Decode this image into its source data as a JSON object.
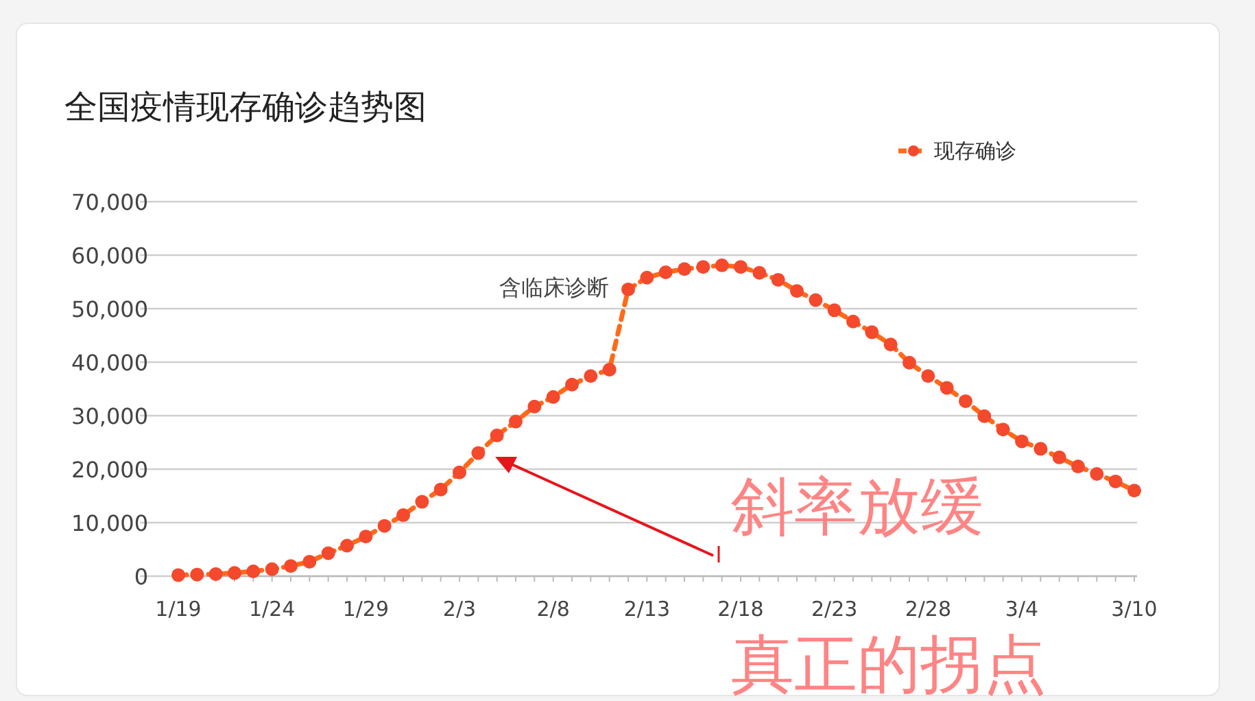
{
  "chart_data": {
    "type": "line",
    "title": "全国疫情现存确诊趋势图",
    "categories": [
      "1/19",
      null,
      null,
      null,
      null,
      "1/24",
      null,
      null,
      null,
      null,
      "1/29",
      null,
      null,
      null,
      null,
      "2/3",
      null,
      null,
      null,
      null,
      "2/8",
      null,
      null,
      null,
      null,
      "2/13",
      null,
      null,
      null,
      null,
      "2/18",
      null,
      null,
      null,
      null,
      "2/23",
      null,
      null,
      null,
      null,
      "2/28",
      null,
      null,
      null,
      null,
      "3/4",
      null,
      null,
      null,
      null,
      null,
      "3/10"
    ],
    "series": [
      {
        "name": "现存确诊",
        "color": "#ff6a1a",
        "values": [
          200,
          300,
          400,
          600,
          900,
          1300,
          1900,
          2700,
          4300,
          5700,
          7400,
          9400,
          11400,
          13900,
          16200,
          19400,
          23000,
          26300,
          28900,
          31700,
          33500,
          35800,
          37400,
          38600,
          53600,
          55800,
          56800,
          57400,
          57800,
          58100,
          57800,
          56700,
          55400,
          53300,
          51600,
          49700,
          47600,
          45600,
          43300,
          39900,
          37400,
          35200,
          32700,
          29900,
          27400,
          25200,
          23800,
          22200,
          20500,
          19100,
          17700,
          16000
        ]
      }
    ],
    "ylim": [
      0,
      70000
    ],
    "yticks": [
      0,
      {
        "value": 10000,
        "label": "10,000"
      },
      {
        "value": 20000,
        "label": "20,000"
      },
      {
        "value": 30000,
        "label": "30,000"
      },
      {
        "value": 40000,
        "label": "40,000"
      },
      {
        "value": 50000,
        "label": "50,000"
      },
      {
        "value": 60000,
        "label": "60,000"
      },
      {
        "value": 70000,
        "label": "70,000"
      }
    ],
    "grid": "y",
    "legend": "top right",
    "marker": "circle",
    "line_style": "dashed",
    "annotations": [
      "含临床诊断",
      "斜率放缓",
      "真正的拐点"
    ]
  }
}
